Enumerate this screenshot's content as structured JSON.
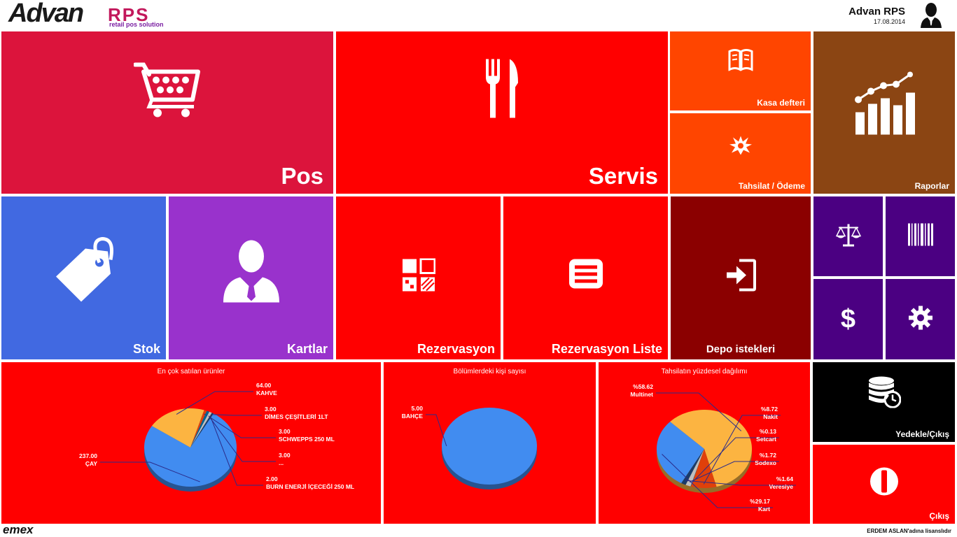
{
  "header": {
    "logo_main": "Advan",
    "logo_rps": "RPS",
    "logo_tagline": "retail pos solution",
    "user_name": "Advan RPS",
    "date": "17.08.2014",
    "avatar_icon": "user-silhouette-icon"
  },
  "tiles": {
    "pos": {
      "label": "Pos",
      "color": "#dc143c",
      "icon": "shopping-cart-icon"
    },
    "servis": {
      "label": "Servis",
      "color": "#ff0000",
      "icon": "fork-knife-icon"
    },
    "kasa": {
      "label": "Kasa defteri",
      "color": "#ff4500",
      "icon": "book-icon"
    },
    "tahsilat": {
      "label": "Tahsilat / Ödeme",
      "color": "#ff4500",
      "icon": "burst-icon"
    },
    "raporlar": {
      "label": "Raporlar",
      "color": "#8b4513",
      "icon": "bar-chart-icon"
    },
    "stok": {
      "label": "Stok",
      "color": "#4169e1",
      "icon": "price-tag-icon"
    },
    "kartlar": {
      "label": "Kartlar",
      "color": "#9932cc",
      "icon": "person-icon"
    },
    "rezervasyon": {
      "label": "Rezervasyon",
      "color": "#ff0000",
      "icon": "qr-grid-icon"
    },
    "rezervasyon_liste": {
      "label": "Rezervasyon Liste",
      "color": "#ff0000",
      "icon": "list-icon"
    },
    "depo": {
      "label": "Depo istekleri",
      "color": "#8b0000",
      "icon": "sign-in-icon"
    },
    "small_tiles_color": "#4b0082",
    "yedekle": {
      "label": "Yedekle/Çıkış",
      "color": "#000000",
      "icon": "database-restore-icon"
    },
    "cikis": {
      "label": "Çıkış",
      "color": "#ff0000",
      "icon": "power-icon"
    }
  },
  "charts_panel_color": "#ff0000",
  "chart_data": [
    {
      "type": "pie",
      "title": "En çok satılan ürünler",
      "slices": [
        {
          "label": "ÇAY",
          "value": 237.0,
          "color": "#418cf0"
        },
        {
          "label": "KAHVE",
          "value": 64.0,
          "color": "#fcb441"
        },
        {
          "label": "DİMES ÇEŞİTLERİ 1LT",
          "value": 3.0,
          "color": "#e0400a"
        },
        {
          "label": "SCHWEPPS 250 ML",
          "value": 3.0,
          "color": "#056492"
        },
        {
          "label": "...",
          "value": 3.0,
          "color": "#bfbfbf"
        },
        {
          "label": "BURN ENERJİ İÇECEĞİ 250 ML",
          "value": 2.0,
          "color": "#1a3b69"
        }
      ],
      "value_labels": [
        "237.00",
        "64.00",
        "3.00",
        "3.00",
        "3.00",
        "2.00"
      ]
    },
    {
      "type": "pie",
      "title": "Bölümlerdeki kişi sayısı",
      "slices": [
        {
          "label": "BAHÇE",
          "value": 5.0,
          "color": "#418cf0"
        }
      ],
      "value_labels": [
        "5.00"
      ]
    },
    {
      "type": "pie",
      "title": "Tahsilatın yüzdesel dağılımı",
      "slices": [
        {
          "label": "Multinet",
          "value": 58.62,
          "color": "#fcb441"
        },
        {
          "label": "Nakit",
          "value": 8.72,
          "color": "#e0400a"
        },
        {
          "label": "Setcart",
          "value": 0.13,
          "color": "#056492"
        },
        {
          "label": "Sodexo",
          "value": 1.72,
          "color": "#bfbfbf"
        },
        {
          "label": "Veresiye",
          "value": 1.64,
          "color": "#1a3b69"
        },
        {
          "label": "Kart",
          "value": 29.17,
          "color": "#418cf0"
        }
      ],
      "value_labels": [
        "%58.62",
        "%8.72",
        "%0.13",
        "%1.72",
        "%1.64",
        "%29.17"
      ]
    }
  ],
  "footer": {
    "brand": "emex",
    "license": "ERDEM ASLAN'adına lisanslıdır"
  }
}
